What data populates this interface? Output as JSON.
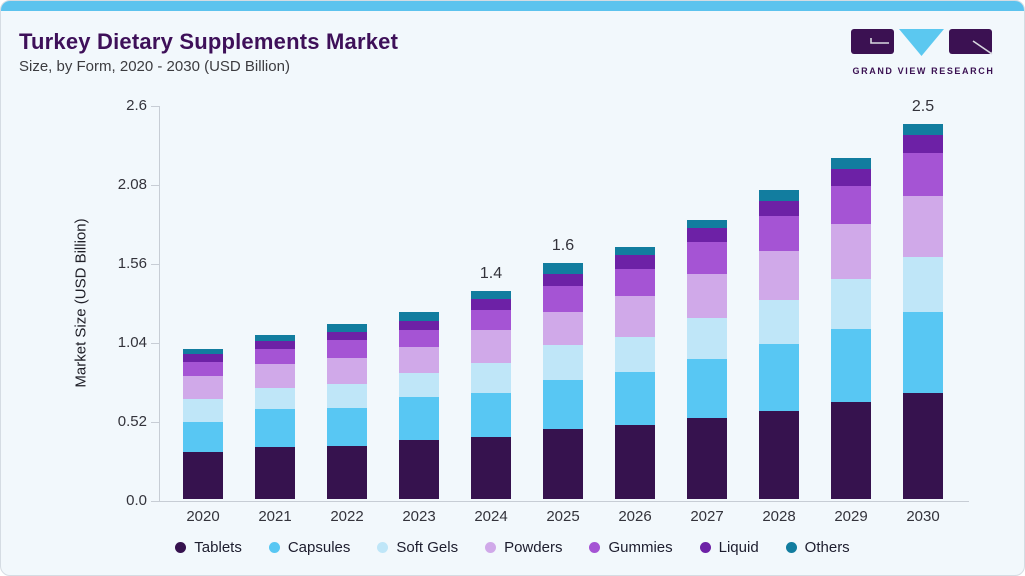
{
  "header": {
    "title": "Turkey Dietary Supplements Market",
    "subtitle": "Size, by Form, 2020 - 2030 (USD Billion)"
  },
  "logo": {
    "brand": "GRAND VIEW RESEARCH",
    "colors": {
      "dark_purple": "#3b1152",
      "light_blue": "#5bc8f0",
      "line_gray": "#d8d8e0"
    }
  },
  "colors": {
    "card_background": "#f2f8fc",
    "accent_bar": "#5cc3ee",
    "axis_line": "#c7cdd5",
    "title_text": "#3e1059",
    "tick_text": "#33333b"
  },
  "chart_data": {
    "type": "bar",
    "subtype": "stacked-vertical",
    "title": "Turkey Dietary Supplements Market Size, by Form, 2020 - 2030 (USD Billion)",
    "xlabel": "",
    "ylabel": "Market Size (USD Billion)",
    "ylim": [
      0,
      2.6
    ],
    "yticks": [
      0.0,
      0.52,
      1.04,
      1.56,
      2.08,
      2.6
    ],
    "ytick_labels": [
      "0.0",
      "0.52",
      "1.04",
      "1.56",
      "2.08",
      "2.6"
    ],
    "grid": false,
    "legend_position": "bottom",
    "categories": [
      "2020",
      "2021",
      "2022",
      "2023",
      "2024",
      "2025",
      "2026",
      "2027",
      "2028",
      "2029",
      "2030"
    ],
    "series": [
      {
        "name": "Tablets",
        "color": "#36124e",
        "values": [
          0.31,
          0.34,
          0.35,
          0.39,
          0.41,
          0.46,
          0.49,
          0.53,
          0.58,
          0.64,
          0.7
        ]
      },
      {
        "name": "Capsules",
        "color": "#58c7f3",
        "values": [
          0.2,
          0.25,
          0.25,
          0.28,
          0.29,
          0.32,
          0.35,
          0.39,
          0.44,
          0.48,
          0.53
        ]
      },
      {
        "name": "Soft Gels",
        "color": "#bfe6f8",
        "values": [
          0.15,
          0.14,
          0.16,
          0.16,
          0.2,
          0.23,
          0.23,
          0.27,
          0.29,
          0.33,
          0.36
        ]
      },
      {
        "name": "Powders",
        "color": "#d0a9e9",
        "values": [
          0.15,
          0.16,
          0.17,
          0.17,
          0.22,
          0.22,
          0.27,
          0.29,
          0.32,
          0.36,
          0.4
        ]
      },
      {
        "name": "Gummies",
        "color": "#a554d4",
        "values": [
          0.09,
          0.1,
          0.12,
          0.11,
          0.13,
          0.17,
          0.18,
          0.21,
          0.23,
          0.25,
          0.28
        ]
      },
      {
        "name": "Liquid",
        "color": "#6d21a6",
        "values": [
          0.05,
          0.05,
          0.05,
          0.06,
          0.07,
          0.08,
          0.09,
          0.09,
          0.1,
          0.11,
          0.12
        ]
      },
      {
        "name": "Others",
        "color": "#127d9f",
        "values": [
          0.03,
          0.04,
          0.05,
          0.06,
          0.05,
          0.07,
          0.05,
          0.05,
          0.07,
          0.07,
          0.07
        ]
      }
    ],
    "totals_estimated": [
      0.98,
      1.08,
      1.15,
      1.23,
      1.37,
      1.55,
      1.66,
      1.83,
      2.03,
      2.24,
      2.46
    ],
    "bar_labels": [
      "",
      "",
      "",
      "",
      "1.4",
      "1.6",
      "",
      "",
      "",
      "",
      "2.5"
    ]
  }
}
